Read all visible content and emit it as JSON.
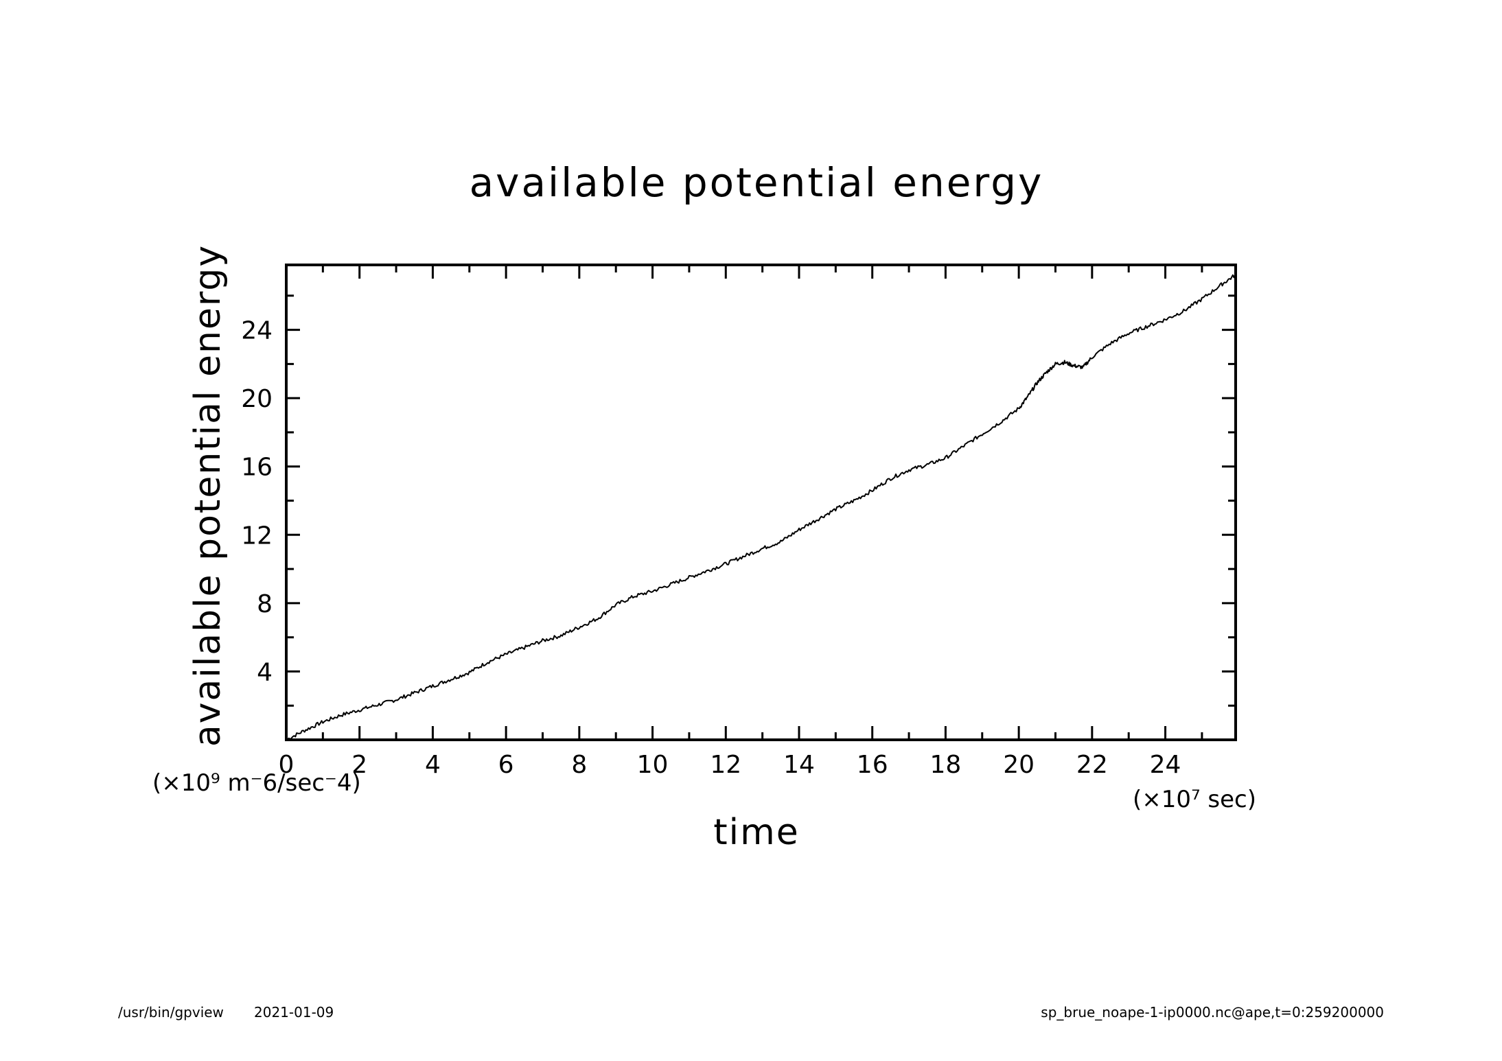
{
  "chart_data": {
    "type": "line",
    "title": "available potential energy",
    "xlabel": "time",
    "ylabel": "available potential energy",
    "x_unit": "(×10⁷ sec)",
    "y_unit": "(×10⁹ m⁻6/sec⁻4)",
    "xlim": [
      0,
      25.92
    ],
    "ylim": [
      0,
      27.8
    ],
    "x_ticks": [
      0,
      2,
      4,
      6,
      8,
      10,
      12,
      14,
      16,
      18,
      20,
      22,
      24
    ],
    "x_tick_labels": [
      "0",
      "2",
      "4",
      "6",
      "8",
      "10",
      "12",
      "14",
      "16",
      "18",
      "20",
      "22",
      "24"
    ],
    "x_minor_ticks": [
      1,
      3,
      5,
      7,
      9,
      11,
      13,
      15,
      17,
      19,
      21,
      23,
      25
    ],
    "y_ticks": [
      4,
      8,
      12,
      16,
      20,
      24
    ],
    "y_tick_labels": [
      "4",
      "8",
      "12",
      "16",
      "20",
      "24"
    ],
    "y_minor_ticks": [
      2,
      6,
      10,
      14,
      18,
      22,
      26
    ],
    "grid": false,
    "legend": "none",
    "line_color": "#000000",
    "series": [
      {
        "x": [
          0,
          0.5,
          1,
          1.5,
          2,
          2.5,
          3,
          3.5,
          4,
          4.5,
          5,
          5.5,
          6,
          6.5,
          7,
          7.5,
          8,
          8.5,
          9,
          9.5,
          10,
          10.5,
          11,
          11.5,
          12,
          12.5,
          13,
          13.5,
          14,
          14.5,
          15,
          15.5,
          16,
          16.5,
          17,
          17.5,
          18,
          18.5,
          19,
          19.5,
          20,
          20.25,
          20.5,
          20.75,
          21,
          21.25,
          21.5,
          21.75,
          22,
          22.5,
          23,
          23.5,
          24,
          24.5,
          25,
          25.5,
          25.9
        ],
        "y": [
          0,
          0.55,
          1.05,
          1.45,
          1.75,
          2.05,
          2.35,
          2.75,
          3.15,
          3.55,
          3.95,
          4.55,
          5.0,
          5.4,
          5.8,
          6.1,
          6.6,
          7.1,
          7.9,
          8.4,
          8.7,
          9.1,
          9.5,
          9.9,
          10.3,
          10.75,
          11.2,
          11.6,
          12.3,
          12.9,
          13.5,
          14.0,
          14.6,
          15.3,
          15.8,
          16.1,
          16.5,
          17.2,
          17.9,
          18.6,
          19.4,
          20.1,
          20.9,
          21.5,
          22.0,
          22.1,
          21.9,
          21.8,
          22.4,
          23.2,
          23.8,
          24.2,
          24.6,
          25.1,
          25.8,
          26.6,
          27.2
        ]
      }
    ]
  },
  "footer": {
    "left_program": "/usr/bin/gpview",
    "left_date": "2021-01-09",
    "right_source": "sp_brue_noape-1-ip0000.nc@ape,t=0:259200000"
  }
}
